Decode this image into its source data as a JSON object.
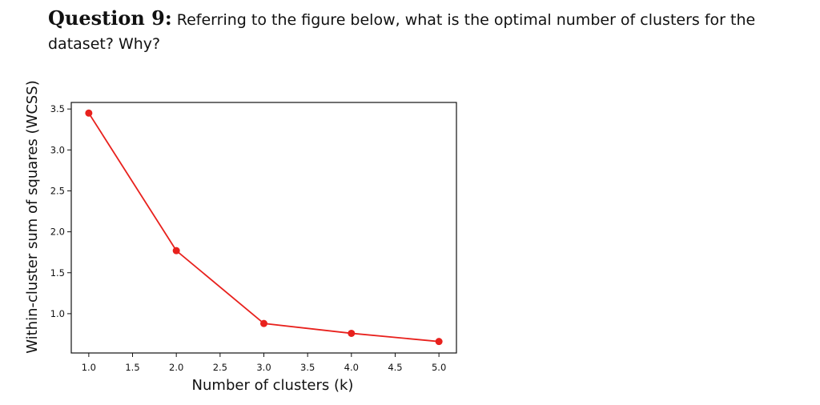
{
  "question": {
    "label": "Question 9:",
    "text": "Referring to the figure below, what is the optimal number of clusters for the dataset? Why?"
  },
  "chart_data": {
    "type": "line",
    "x": [
      1.0,
      2.0,
      3.0,
      4.0,
      5.0
    ],
    "series": [
      {
        "values": [
          3.45,
          1.77,
          0.88,
          0.76,
          0.66
        ],
        "color": "#e8211d"
      }
    ],
    "xlabel": "Number of clusters (k)",
    "ylabel": "Within-cluster sum of squares (WCSS)",
    "xticks": [
      "1.0",
      "1.5",
      "2.0",
      "2.5",
      "3.0",
      "3.5",
      "4.0",
      "4.5",
      "5.0"
    ],
    "yticks": [
      "1.0",
      "1.5",
      "2.0",
      "2.5",
      "3.0",
      "3.5"
    ],
    "xlim": [
      0.8,
      5.2
    ],
    "ylim": [
      0.52,
      3.58
    ],
    "grid": false,
    "marker": "circle"
  }
}
